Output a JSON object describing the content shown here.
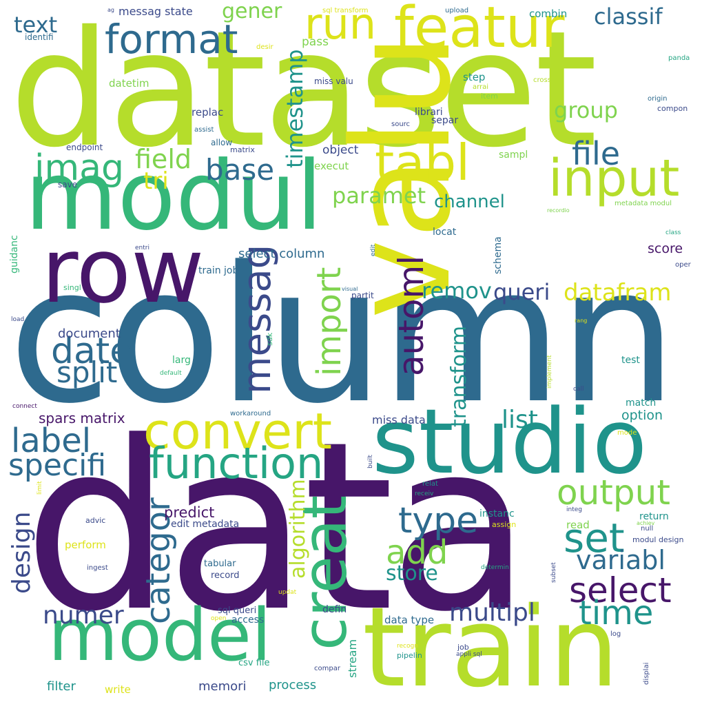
{
  "palette": {
    "purple": "#471669",
    "indigo": "#3b4a8a",
    "blue": "#2e6a8e",
    "teal": "#1f938b",
    "sea": "#25a583",
    "green": "#35b779",
    "lime": "#7fd34e",
    "yellowgreen": "#b1dd2e",
    "yellow": "#dde31a"
  },
  "words": [
    {
      "text": "dataset",
      "color": "#b5dd2b"
    },
    {
      "text": "column",
      "color": "#2e6a8e"
    },
    {
      "text": "data",
      "color": "#471669"
    },
    {
      "text": "valu",
      "color": "#dde31a"
    },
    {
      "text": "modul",
      "color": "#35b779"
    },
    {
      "text": "row",
      "color": "#471669"
    },
    {
      "text": "studio",
      "color": "#1f938b"
    },
    {
      "text": "train",
      "color": "#b5dd2b"
    },
    {
      "text": "model",
      "color": "#35b779"
    },
    {
      "text": "featur",
      "color": "#dde31a"
    },
    {
      "text": "creat",
      "color": "#35b779"
    },
    {
      "text": "convert",
      "color": "#dde31a"
    },
    {
      "text": "function",
      "color": "#25a583"
    },
    {
      "text": "tabl",
      "color": "#dde31a"
    },
    {
      "text": "input",
      "color": "#b5dd2b"
    },
    {
      "text": "imag",
      "color": "#35b779"
    },
    {
      "text": "format",
      "color": "#2e6a8e"
    },
    {
      "text": "run",
      "color": "#dde31a"
    },
    {
      "text": "output",
      "color": "#7fd34e"
    },
    {
      "text": "select",
      "color": "#471669"
    },
    {
      "text": "set",
      "color": "#1f938b"
    },
    {
      "text": "messag",
      "color": "#3b4a8a"
    },
    {
      "text": "automl",
      "color": "#471669"
    },
    {
      "text": "import",
      "color": "#7fd34e"
    },
    {
      "text": "date",
      "color": "#2e6a8e"
    },
    {
      "text": "split",
      "color": "#2e6a8e"
    },
    {
      "text": "label",
      "color": "#2e6a8e"
    },
    {
      "text": "specifi",
      "color": "#2e6a8e"
    },
    {
      "text": "base",
      "color": "#2e6a8e"
    },
    {
      "text": "type",
      "color": "#2e6a8e"
    },
    {
      "text": "add",
      "color": "#7fd34e"
    },
    {
      "text": "categor",
      "color": "#2e6a8e"
    },
    {
      "text": "time",
      "color": "#1f938b"
    },
    {
      "text": "file",
      "color": "#2e6a8e"
    },
    {
      "text": "variabl",
      "color": "#2e6a8e"
    },
    {
      "text": "multipl",
      "color": "#3b4a8a"
    },
    {
      "text": "numer",
      "color": "#3b4a8a"
    },
    {
      "text": "design",
      "color": "#3b4a8a"
    },
    {
      "text": "algorithm",
      "color": "#b5dd2b"
    },
    {
      "text": "datafram",
      "color": "#dde31a"
    },
    {
      "text": "timestamp",
      "color": "#1f938b"
    },
    {
      "text": "transform",
      "color": "#1f938b"
    },
    {
      "text": "field",
      "color": "#7fd34e"
    },
    {
      "text": "tri",
      "color": "#dde31a"
    },
    {
      "text": "paramet",
      "color": "#7fd34e"
    },
    {
      "text": "list",
      "color": "#1f938b"
    },
    {
      "text": "remov",
      "color": "#1f938b"
    },
    {
      "text": "queri",
      "color": "#3b4a8a"
    },
    {
      "text": "store",
      "color": "#1f938b"
    },
    {
      "text": "group",
      "color": "#7fd34e"
    },
    {
      "text": "channel",
      "color": "#1f938b"
    },
    {
      "text": "classif",
      "color": "#2e6a8e"
    },
    {
      "text": "gener",
      "color": "#7fd34e"
    },
    {
      "text": "text",
      "color": "#2e6a8e"
    },
    {
      "text": "predict",
      "color": "#471669"
    },
    {
      "text": "spars matrix",
      "color": "#471669"
    },
    {
      "text": "select column",
      "color": "#2e6a8e"
    },
    {
      "text": "document",
      "color": "#3b4a8a"
    },
    {
      "text": "score",
      "color": "#471669"
    },
    {
      "text": "option",
      "color": "#1f938b"
    },
    {
      "text": "filter",
      "color": "#1f938b"
    },
    {
      "text": "memori",
      "color": "#3b4a8a"
    },
    {
      "text": "process",
      "color": "#1f938b"
    },
    {
      "text": "object",
      "color": "#3b4a8a"
    },
    {
      "text": "messag state",
      "color": "#3b4a8a"
    },
    {
      "text": "miss data",
      "color": "#3b4a8a"
    },
    {
      "text": "stream",
      "color": "#25a583"
    },
    {
      "text": "data type",
      "color": "#2e6a8e"
    },
    {
      "text": "sql queri",
      "color": "#3b4a8a"
    },
    {
      "text": "access",
      "color": "#2e6a8e"
    },
    {
      "text": "defin",
      "color": "#3b4a8a"
    },
    {
      "text": "execut",
      "color": "#7fd34e"
    },
    {
      "text": "pass",
      "color": "#7fd34e"
    },
    {
      "text": "datetim",
      "color": "#7fd34e"
    },
    {
      "text": "combin",
      "color": "#1f938b"
    },
    {
      "text": "step",
      "color": "#1f938b"
    },
    {
      "text": "librari",
      "color": "#3b4a8a"
    },
    {
      "text": "separ",
      "color": "#3b4a8a"
    },
    {
      "text": "replac",
      "color": "#3b4a8a"
    },
    {
      "text": "schema",
      "color": "#2e6a8e"
    },
    {
      "text": "locat",
      "color": "#2e6a8e"
    },
    {
      "text": "edit metadata",
      "color": "#3b4a8a"
    },
    {
      "text": "read",
      "color": "#7fd34e"
    },
    {
      "text": "instanc",
      "color": "#1f938b"
    },
    {
      "text": "relat",
      "color": "#1f938b"
    },
    {
      "text": "return",
      "color": "#1f938b"
    },
    {
      "text": "match",
      "color": "#1f938b"
    },
    {
      "text": "test",
      "color": "#1f938b"
    },
    {
      "text": "train job",
      "color": "#2e6a8e"
    },
    {
      "text": "partit",
      "color": "#3b4a8a"
    },
    {
      "text": "csv file",
      "color": "#25a583"
    },
    {
      "text": "pipelin",
      "color": "#1f938b"
    },
    {
      "text": "job",
      "color": "#3b4a8a"
    },
    {
      "text": "tabular",
      "color": "#2e6a8e"
    },
    {
      "text": "record",
      "color": "#3b4a8a"
    },
    {
      "text": "advic",
      "color": "#3b4a8a"
    },
    {
      "text": "perform",
      "color": "#dde31a"
    },
    {
      "text": "write",
      "color": "#dde31a"
    },
    {
      "text": "sampl",
      "color": "#7fd34e"
    },
    {
      "text": "larg",
      "color": "#35b779"
    },
    {
      "text": "sdk",
      "color": "#35b779"
    },
    {
      "text": "endpoint",
      "color": "#3b4a8a"
    },
    {
      "text": "matrix",
      "color": "#3b4a8a"
    },
    {
      "text": "allow",
      "color": "#2e6a8e"
    },
    {
      "text": "save",
      "color": "#3b4a8a"
    },
    {
      "text": "guidanc",
      "color": "#35b779"
    },
    {
      "text": "miss valu",
      "color": "#3b4a8a"
    },
    {
      "text": "modul design",
      "color": "#3b4a8a"
    },
    {
      "text": "compon",
      "color": "#3b4a8a"
    },
    {
      "text": "item",
      "color": "#7fd34e"
    },
    {
      "text": "assign",
      "color": "#dde31a"
    },
    {
      "text": "null",
      "color": "#3b4a8a"
    },
    {
      "text": "compar",
      "color": "#3b4a8a"
    },
    {
      "text": "ingest",
      "color": "#3b4a8a"
    },
    {
      "text": "identifi",
      "color": "#2e6a8e"
    },
    {
      "text": "sql transform",
      "color": "#dde31a"
    },
    {
      "text": "upload",
      "color": "#2e6a8e"
    },
    {
      "text": "desir",
      "color": "#dde31a"
    },
    {
      "text": "panda",
      "color": "#25a583"
    },
    {
      "text": "arrai",
      "color": "#b5dd2b"
    },
    {
      "text": "cross",
      "color": "#b5dd2b"
    },
    {
      "text": "origin",
      "color": "#2e6a8e"
    },
    {
      "text": "sourc",
      "color": "#3b4a8a"
    },
    {
      "text": "assist",
      "color": "#2e6a8e"
    },
    {
      "text": "singl",
      "color": "#35b779"
    },
    {
      "text": "entri",
      "color": "#3b4a8a"
    },
    {
      "text": "visual",
      "color": "#2e6a8e"
    },
    {
      "text": "default",
      "color": "#35b779"
    },
    {
      "text": "load",
      "color": "#3b4a8a"
    },
    {
      "text": "connect",
      "color": "#471669"
    },
    {
      "text": "workaround",
      "color": "#2e6a8e"
    },
    {
      "text": "edit",
      "color": "#2e6a8e"
    },
    {
      "text": "metadata modul",
      "color": "#7fd34e"
    },
    {
      "text": "recordio",
      "color": "#7fd34e"
    },
    {
      "text": "class",
      "color": "#25a583"
    },
    {
      "text": "oper",
      "color": "#3b4a8a"
    },
    {
      "text": "rang",
      "color": "#dde31a"
    },
    {
      "text": "implement",
      "color": "#b5dd2b"
    },
    {
      "text": "call",
      "color": "#3b4a8a"
    },
    {
      "text": "mode",
      "color": "#dde31a"
    },
    {
      "text": "built",
      "color": "#3b4a8a"
    },
    {
      "text": "receiv",
      "color": "#25a583"
    },
    {
      "text": "integ",
      "color": "#3b4a8a"
    },
    {
      "text": "achiev",
      "color": "#7fd34e"
    },
    {
      "text": "subset",
      "color": "#3b4a8a"
    },
    {
      "text": "determin",
      "color": "#25a583"
    },
    {
      "text": "updat",
      "color": "#dde31a"
    },
    {
      "text": "open",
      "color": "#dde31a"
    },
    {
      "text": "recogn",
      "color": "#dde31a"
    },
    {
      "text": "appli sql",
      "color": "#3b4a8a"
    },
    {
      "text": "log",
      "color": "#3b4a8a"
    },
    {
      "text": "displai",
      "color": "#3b4a8a"
    },
    {
      "text": "limit",
      "color": "#dde31a"
    },
    {
      "text": "ag",
      "color": "#3b4a8a"
    }
  ]
}
